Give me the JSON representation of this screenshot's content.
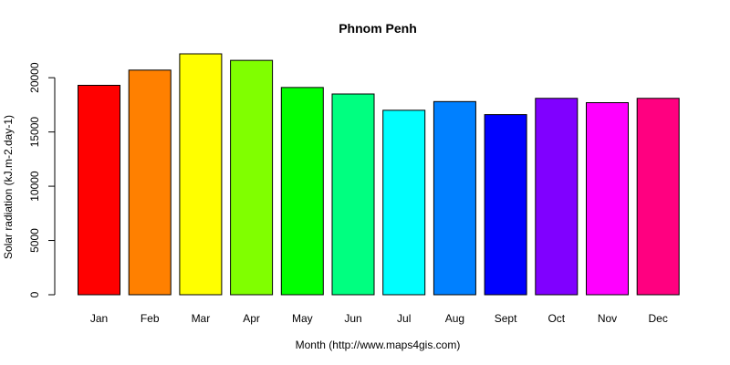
{
  "chart_data": {
    "type": "bar",
    "title": "Phnom Penh",
    "xlabel": "Month (http://www.maps4gis.com)",
    "ylabel": "Solar radiation (kJ.m-2.day-1)",
    "categories": [
      "Jan",
      "Feb",
      "Mar",
      "Apr",
      "May",
      "Jun",
      "Jul",
      "Aug",
      "Sept",
      "Oct",
      "Nov",
      "Dec"
    ],
    "values": [
      19300,
      20700,
      22200,
      21600,
      19100,
      18500,
      17000,
      17800,
      16600,
      18100,
      17700,
      18100
    ],
    "colors": [
      "#ff0000",
      "#ff8000",
      "#ffff00",
      "#80ff00",
      "#00ff00",
      "#00ff80",
      "#00ffff",
      "#0080ff",
      "#0000ff",
      "#8000ff",
      "#ff00ff",
      "#ff0080"
    ],
    "yticks": [
      0,
      5000,
      10000,
      15000,
      20000
    ],
    "ylim": [
      0,
      22200
    ],
    "grid": false,
    "legend": "none"
  }
}
